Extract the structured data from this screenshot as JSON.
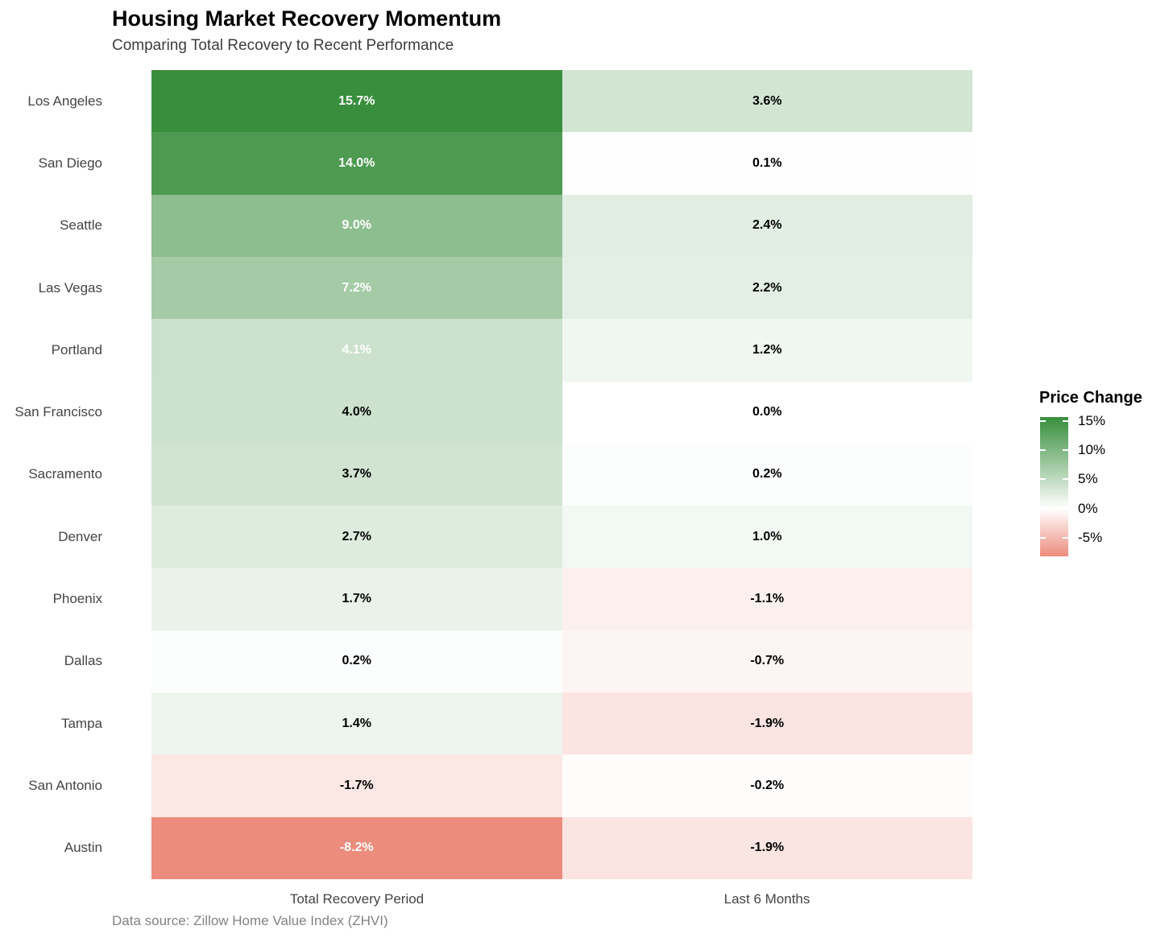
{
  "chart_data": {
    "type": "heatmap",
    "title": "Housing Market Recovery Momentum",
    "subtitle": "Comparing Total Recovery to Recent Performance",
    "caption": "Data source: Zillow Home Value Index (ZHVI)",
    "x_categories": [
      "Total Recovery Period",
      "Last 6 Months"
    ],
    "y_categories": [
      "Los Angeles",
      "San Diego",
      "Seattle",
      "Las Vegas",
      "Portland",
      "San Francisco",
      "Sacramento",
      "Denver",
      "Phoenix",
      "Dallas",
      "Tampa",
      "San Antonio",
      "Austin"
    ],
    "series": [
      {
        "name": "Total Recovery Period",
        "values": [
          15.7,
          14.0,
          9.0,
          7.2,
          4.1,
          4.0,
          3.7,
          2.7,
          1.7,
          0.2,
          1.4,
          -1.7,
          -8.2
        ]
      },
      {
        "name": "Last 6 Months",
        "values": [
          3.6,
          0.1,
          2.4,
          2.2,
          1.2,
          0.0,
          0.2,
          1.0,
          -1.1,
          -0.7,
          -1.9,
          -0.2,
          -1.9
        ]
      }
    ],
    "cell_label_format": "one_decimal_percent",
    "grid": false,
    "legend": {
      "title": "Price Change",
      "position": "right",
      "breaks": [
        15,
        10,
        5,
        0,
        -5
      ],
      "labels": [
        "15%",
        "10%",
        "5%",
        "0%",
        "-5%"
      ]
    },
    "color_scale": {
      "type": "diverging",
      "low": "#ec8c7d",
      "mid": "#ffffff",
      "high": "#388e3c",
      "midpoint": 0,
      "domain": [
        -8.2,
        15.7
      ]
    },
    "label_text_colors": {
      "on_dark": "#ffffff",
      "on_light": "#000000",
      "white_text_threshold_abs": 4
    }
  }
}
